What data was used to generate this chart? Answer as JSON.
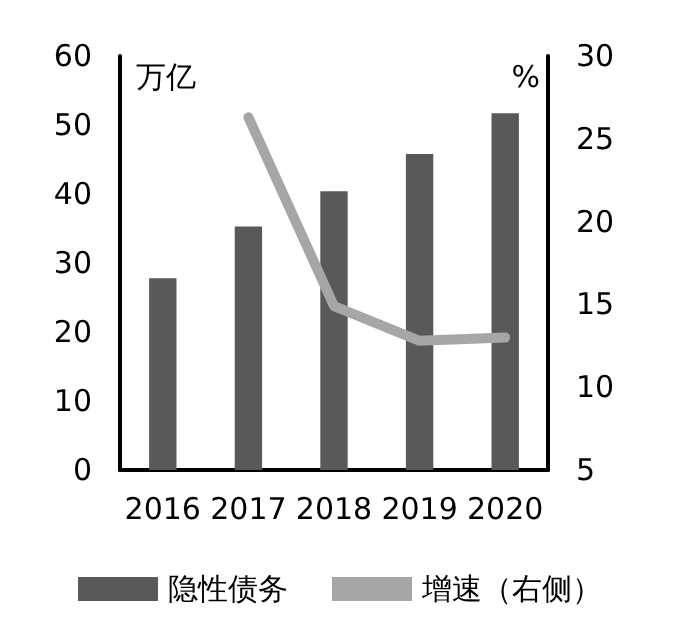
{
  "chart_data": {
    "type": "bar",
    "categories": [
      "2016",
      "2017",
      "2018",
      "2019",
      "2020"
    ],
    "ylabel": "万亿",
    "y2label": "%",
    "series": [
      {
        "name": "隐性债务",
        "color": "#595959",
        "values": [
          27.8,
          35.3,
          40.4,
          45.8,
          51.7
        ]
      },
      {
        "name": "增速（右侧）",
        "type": "line",
        "axis": "y2",
        "color": "#a6a6a6",
        "values": [
          null,
          26.3,
          14.9,
          12.8,
          13.0
        ]
      }
    ],
    "ylim": [
      0,
      60
    ],
    "yticks": [
      0,
      10,
      20,
      30,
      40,
      50,
      60
    ],
    "y2lim": [
      5,
      30
    ],
    "y2ticks": [
      5,
      10,
      15,
      20,
      25,
      30
    ],
    "grid": false,
    "legend": "bottom",
    "marker": "none",
    "line_style": "solid"
  }
}
